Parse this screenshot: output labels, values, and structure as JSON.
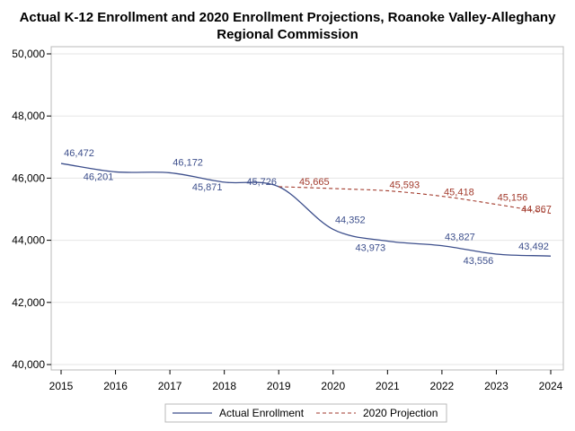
{
  "chart_data": {
    "type": "line",
    "title_lines": [
      "Actual K-12 Enrollment and 2020 Enrollment Projections, Roanoke Valley-Alleghany",
      "Regional Commission"
    ],
    "xlabel": "",
    "ylabel": "",
    "x_ticks": [
      "2015",
      "2016",
      "2017",
      "2018",
      "2019",
      "2020",
      "2021",
      "2022",
      "2023",
      "2024"
    ],
    "y_ticks": [
      "40,000",
      "42,000",
      "44,000",
      "46,000",
      "48,000",
      "50,000"
    ],
    "xlim": [
      2015,
      2024
    ],
    "ylim": [
      40000,
      50000
    ],
    "grid": "horizontal",
    "legend_position": "bottom",
    "series": [
      {
        "name": "Actual Enrollment",
        "color": "#3d4f8c",
        "style": "solid",
        "x": [
          2015,
          2016,
          2017,
          2018,
          2019,
          2020,
          2021,
          2022,
          2023,
          2024
        ],
        "y": [
          46472,
          46201,
          46172,
          45871,
          45726,
          44352,
          43973,
          43827,
          43556,
          43492
        ],
        "labels": [
          "46,472",
          "46,201",
          "46,172",
          "45,871",
          "45,726",
          "44,352",
          "43,973",
          "43,827",
          "43,556",
          "43,492"
        ]
      },
      {
        "name": "2020 Projection",
        "color": "#a23a2c",
        "style": "dashed",
        "x": [
          2019,
          2020,
          2021,
          2022,
          2023,
          2024
        ],
        "y": [
          45726,
          45665,
          45593,
          45418,
          45156,
          44867
        ],
        "labels": [
          "",
          "45,665",
          "45,593",
          "45,418",
          "45,156",
          "44,867"
        ]
      }
    ]
  }
}
